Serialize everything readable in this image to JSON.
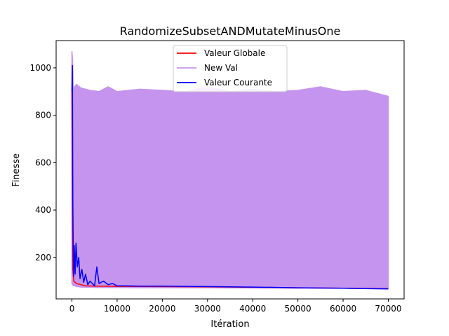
{
  "chart_data": {
    "type": "line",
    "title": "RandomizeSubsetANDMutateMinusOne",
    "xlabel": "Itération",
    "ylabel": "Finesse",
    "xlim": [
      -3500,
      73500
    ],
    "ylim": [
      25,
      1115
    ],
    "x_ticks": [
      0,
      10000,
      20000,
      30000,
      40000,
      50000,
      60000,
      70000
    ],
    "x_tick_labels": [
      "0",
      "10000",
      "20000",
      "30000",
      "40000",
      "50000",
      "60000",
      "70000"
    ],
    "y_ticks": [
      200,
      400,
      600,
      800,
      1000
    ],
    "y_tick_labels": [
      "200",
      "400",
      "600",
      "800",
      "1000"
    ],
    "grid": false,
    "legend_position": "upper center",
    "series": [
      {
        "name": "New Val",
        "color": "#c594ef",
        "x": [
          0,
          150,
          300,
          600,
          1000,
          2000,
          4000,
          6000,
          8000,
          10000,
          15000,
          20000,
          25000,
          30000,
          35000,
          40000,
          45000,
          50000,
          55000,
          60000,
          65000,
          70000
        ],
        "values": [
          1070,
          1030,
          900,
          920,
          930,
          915,
          905,
          900,
          920,
          900,
          910,
          905,
          900,
          920,
          900,
          910,
          900,
          905,
          920,
          900,
          905,
          880
        ],
        "lower": [
          90,
          85,
          80,
          80,
          78,
          75,
          74,
          73,
          73,
          73,
          72,
          72,
          72,
          72,
          71,
          71,
          71,
          70,
          70,
          70,
          70,
          70
        ]
      },
      {
        "name": "Valeur Globale",
        "color": "#ff0000",
        "x": [
          0,
          200,
          400,
          1000,
          2000,
          3000,
          5000,
          10000,
          20000,
          30000,
          40000,
          50000,
          60000,
          70000
        ],
        "values": [
          900,
          150,
          100,
          90,
          85,
          80,
          79,
          78,
          77,
          76,
          74,
          72,
          70,
          68
        ]
      },
      {
        "name": "Valeur Courante",
        "color": "#0000ff",
        "x": [
          0,
          100,
          200,
          300,
          400,
          500,
          700,
          900,
          1200,
          1500,
          1800,
          2200,
          2600,
          3000,
          3500,
          4000,
          5000,
          5500,
          6000,
          7000,
          8000,
          9000,
          10000,
          12000,
          15000,
          20000,
          25000,
          30000,
          40000,
          50000,
          60000,
          70000
        ],
        "values": [
          900,
          1010,
          440,
          210,
          120,
          250,
          130,
          260,
          160,
          200,
          110,
          150,
          95,
          130,
          85,
          100,
          80,
          160,
          90,
          100,
          85,
          90,
          80,
          80,
          79,
          79,
          78,
          77,
          75,
          72,
          70,
          67
        ]
      }
    ]
  }
}
